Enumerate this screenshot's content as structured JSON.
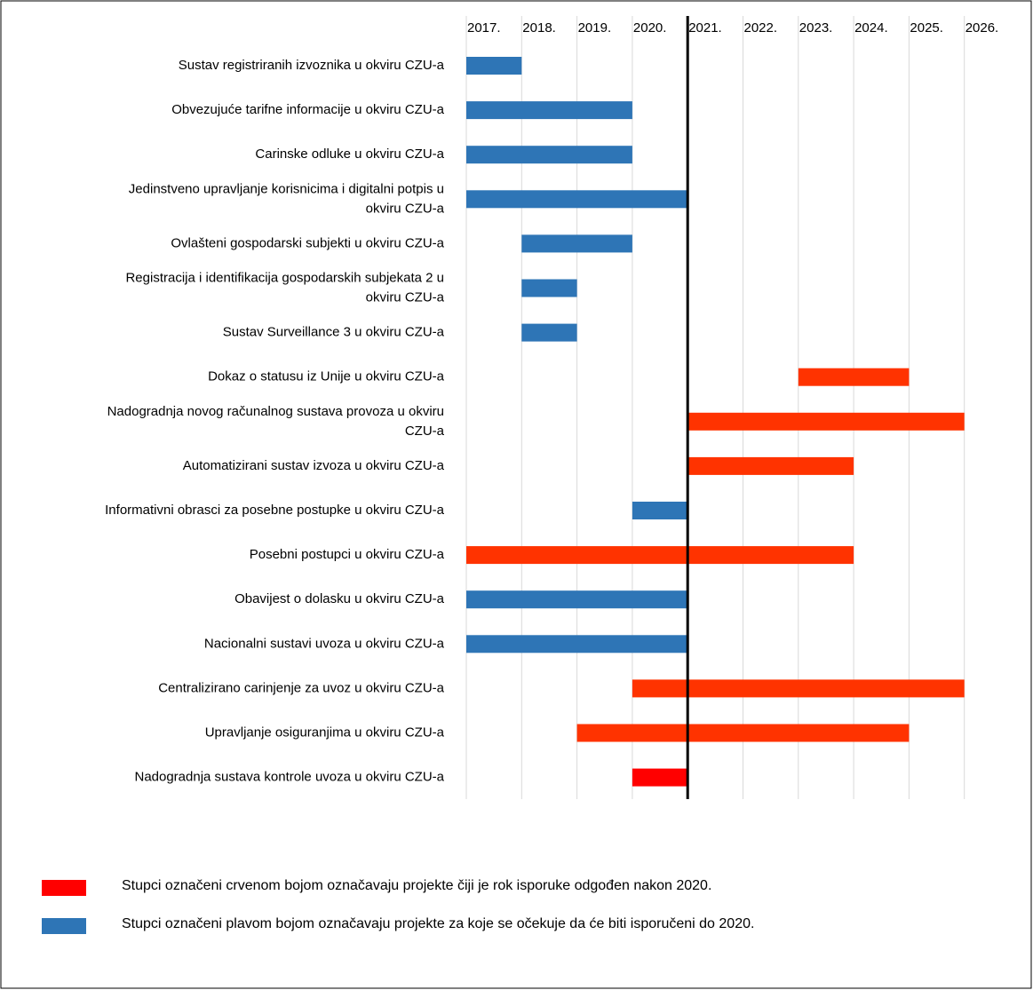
{
  "chart_data": {
    "type": "gantt",
    "xlim": [
      2017,
      2027
    ],
    "xticks": [
      {
        "value": 2017,
        "label": "2017."
      },
      {
        "value": 2018,
        "label": "2018."
      },
      {
        "value": 2019,
        "label": "2019."
      },
      {
        "value": 2020,
        "label": "2020."
      },
      {
        "value": 2021,
        "label": "2021."
      },
      {
        "value": 2022,
        "label": "2022."
      },
      {
        "value": 2023,
        "label": "2023."
      },
      {
        "value": 2024,
        "label": "2024."
      },
      {
        "value": 2025,
        "label": "2025."
      },
      {
        "value": 2026,
        "label": "2026."
      }
    ],
    "grid": true,
    "marker_x": 2021,
    "tasks": [
      {
        "name": [
          "Sustav registriranih izvoznika u okviru CZU-a"
        ],
        "start": 2017,
        "end": 2018,
        "color": "#2e75b6"
      },
      {
        "name": [
          "Obvezujuće tarifne informacije u okviru CZU-a"
        ],
        "start": 2017,
        "end": 2020,
        "color": "#2e75b6"
      },
      {
        "name": [
          "Carinske odluke u okviru CZU-a"
        ],
        "start": 2017,
        "end": 2020,
        "color": "#2e75b6"
      },
      {
        "name": [
          "Jedinstveno upravljanje korisnicima i digitalni potpis u",
          "okviru CZU-a"
        ],
        "start": 2017,
        "end": 2021,
        "color": "#2e75b6"
      },
      {
        "name": [
          "Ovlašteni gospodarski subjekti u okviru CZU-a"
        ],
        "start": 2018,
        "end": 2020,
        "color": "#2e75b6"
      },
      {
        "name": [
          "Registracija i identifikacija gospodarskih subjekata 2 u",
          "okviru CZU-a"
        ],
        "start": 2018,
        "end": 2019,
        "color": "#2e75b6"
      },
      {
        "name": [
          "Sustav Surveillance 3 u okviru CZU-a"
        ],
        "start": 2018,
        "end": 2019,
        "color": "#2e75b6"
      },
      {
        "name": [
          "Dokaz o statusu iz Unije u okviru CZU-a"
        ],
        "start": 2023,
        "end": 2025,
        "color": "#ff3300"
      },
      {
        "name": [
          "Nadogradnja novog računalnog sustava provoza u okviru",
          "CZU-a"
        ],
        "start": 2021,
        "end": 2026,
        "color": "#ff3300"
      },
      {
        "name": [
          "Automatizirani sustav izvoza u okviru CZU-a"
        ],
        "start": 2021,
        "end": 2024,
        "color": "#ff3300"
      },
      {
        "name": [
          "Informativni obrasci za posebne postupke u okviru CZU-a"
        ],
        "start": 2020,
        "end": 2021,
        "color": "#2e75b6"
      },
      {
        "name": [
          "Posebni postupci u okviru CZU-a"
        ],
        "start": 2017,
        "end": 2024,
        "color": "#ff3300"
      },
      {
        "name": [
          "Obavijest o dolasku u okviru CZU-a"
        ],
        "start": 2017,
        "end": 2021,
        "color": "#2e75b6"
      },
      {
        "name": [
          "Nacionalni sustavi uvoza u okviru CZU-a"
        ],
        "start": 2017,
        "end": 2021,
        "color": "#2e75b6"
      },
      {
        "name": [
          "Centralizirano carinjenje za uvoz u okviru CZU-a"
        ],
        "start": 2020,
        "end": 2026,
        "color": "#ff3300"
      },
      {
        "name": [
          "Upravljanje osiguranjima u okviru CZU-a"
        ],
        "start": 2019,
        "end": 2025,
        "color": "#ff3300"
      },
      {
        "name": [
          "Nadogradnja sustava kontrole uvoza u okviru CZU-a"
        ],
        "start": 2020,
        "end": 2021,
        "color": "#ff0000"
      }
    ],
    "legend": [
      {
        "color": "#ff0000",
        "label": "Stupci označeni crvenom bojom označavaju projekte čiji je rok isporuke odgođen nakon 2020."
      },
      {
        "color": "#2e75b6",
        "label": "Stupci označeni plavom bojom označavaju projekte za koje se očekuje da će biti isporučeni do 2020."
      }
    ]
  }
}
